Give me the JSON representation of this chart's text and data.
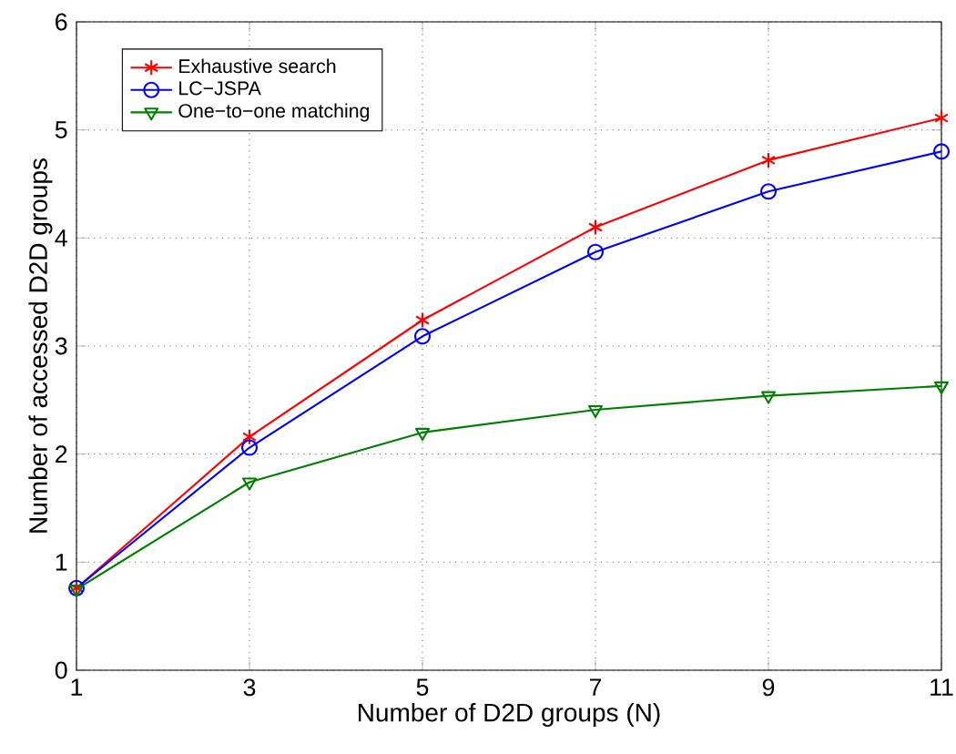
{
  "chart_data": {
    "type": "line",
    "xlabel": "Number of D2D groups (N)",
    "ylabel": "Number of accessed D2D groups",
    "x": [
      1,
      3,
      5,
      7,
      9,
      11
    ],
    "series": [
      {
        "name": "Exhaustive search",
        "color": "#ff0000",
        "marker": "cross",
        "values": [
          0.76,
          2.16,
          3.24,
          4.1,
          4.72,
          5.11
        ]
      },
      {
        "name": "LC−JSPA",
        "color": "#0000ff",
        "marker": "circle",
        "values": [
          0.76,
          2.06,
          3.09,
          3.87,
          4.43,
          4.8
        ]
      },
      {
        "name": "One−to−one matching",
        "color": "#008000",
        "marker": "triangle",
        "values": [
          0.75,
          1.74,
          2.2,
          2.41,
          2.54,
          2.63
        ]
      }
    ],
    "xlim": [
      1,
      11
    ],
    "xticks": [
      1,
      3,
      5,
      7,
      9,
      11
    ],
    "ylim": [
      0,
      6
    ],
    "yticks": [
      0,
      1,
      2,
      3,
      4,
      5,
      6
    ],
    "grid": true,
    "legend": "top left",
    "line_style": "solid"
  }
}
